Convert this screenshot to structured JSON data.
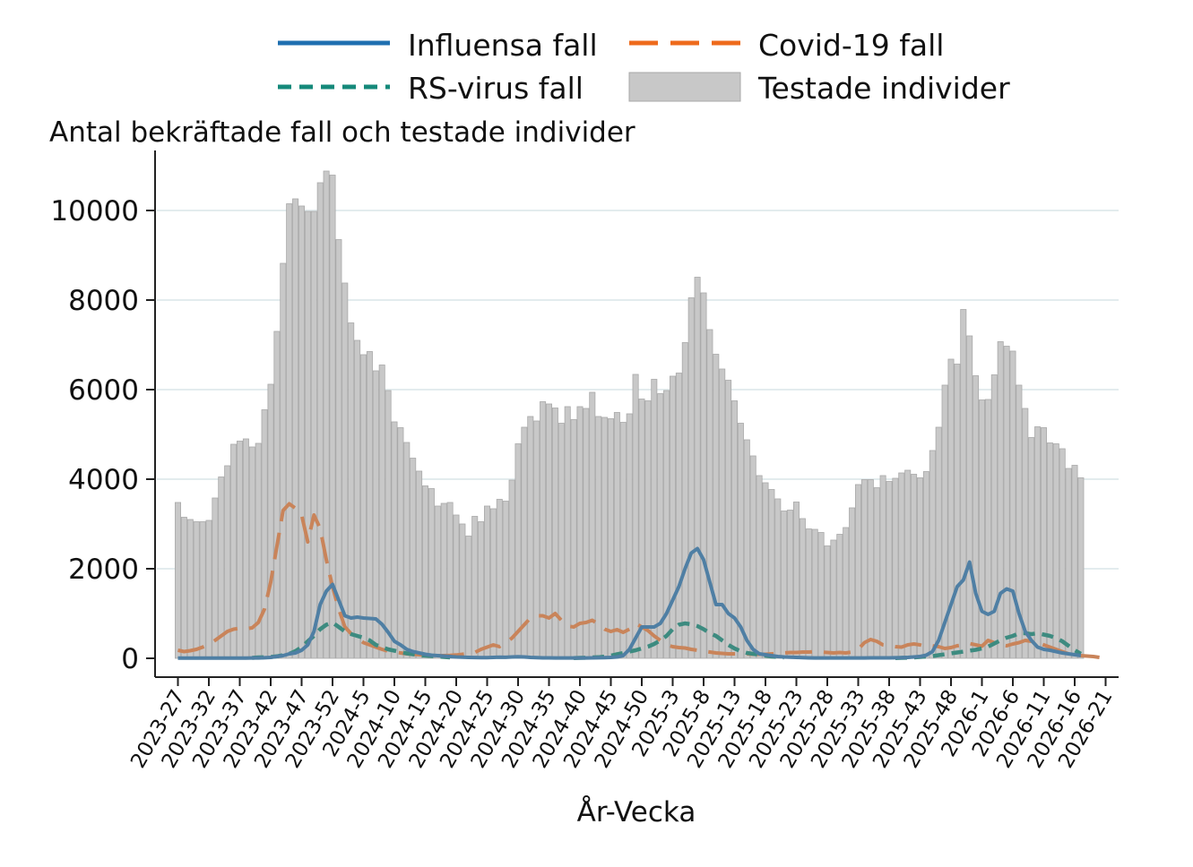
{
  "chart_data": {
    "type": "bar",
    "title": "Antal bekräftade fall och testade individer",
    "xlabel": "År-Vecka",
    "ylabel": "",
    "ylim": [
      0,
      11000
    ],
    "yticks": [
      0,
      2000,
      4000,
      6000,
      8000,
      10000
    ],
    "grid": true,
    "legend_position": "top",
    "tick_labels": [
      "2023-27",
      "2023-32",
      "2023-37",
      "2023-42",
      "2023-47",
      "2023-52",
      "2024-5",
      "2024-10",
      "2024-15",
      "2024-20",
      "2024-25",
      "2024-30",
      "2024-35",
      "2024-40",
      "2024-45",
      "2024-50",
      "2025-3",
      "2025-8",
      "2025-13",
      "2025-18",
      "2025-23",
      "2025-28",
      "2025-33",
      "2025-38",
      "2025-43",
      "2025-48",
      "2026-1",
      "2026-6",
      "2026-11",
      "2026-16",
      "2026-21"
    ],
    "legend": [
      {
        "key": "influensa",
        "label": "Influensa fall",
        "color": "#1f6fb0",
        "style": "solid"
      },
      {
        "key": "covid",
        "label": "Covid-19 fall",
        "color": "#ee6a1c",
        "style": "longdash"
      },
      {
        "key": "rsv",
        "label": "RS-virus fall",
        "color": "#15897a",
        "style": "dash"
      },
      {
        "key": "tested",
        "label": "Testade individer",
        "color": "#c8c8c8",
        "style": "bar"
      }
    ],
    "series": [
      {
        "name": "Testade individer",
        "key": "tested",
        "values": [
          3480,
          3150,
          3100,
          3050,
          3050,
          3080,
          3580,
          4050,
          4300,
          4780,
          4850,
          4900,
          4720,
          4800,
          5550,
          6120,
          7300,
          8820,
          10150,
          10260,
          10100,
          9980,
          9980,
          10620,
          10880,
          10790,
          9350,
          8380,
          7490,
          7100,
          6780,
          6850,
          6420,
          6550,
          5980,
          5280,
          5150,
          4820,
          4470,
          4180,
          3850,
          3790,
          3400,
          3460,
          3480,
          3200,
          3000,
          2730,
          3170,
          3050,
          3400,
          3340,
          3550,
          3510,
          3980,
          4790,
          5160,
          5400,
          5300,
          5730,
          5680,
          5590,
          5250,
          5620,
          5330,
          5620,
          5580,
          5940,
          5400,
          5380,
          5350,
          5490,
          5270,
          5460,
          6340,
          5790,
          5750,
          6230,
          5910,
          5980,
          6300,
          6370,
          7050,
          8050,
          8510,
          8160,
          7340,
          6790,
          6460,
          6210,
          5750,
          5250,
          4880,
          4520,
          4080,
          3920,
          3770,
          3560,
          3290,
          3310,
          3490,
          3120,
          2890,
          2880,
          2810,
          2510,
          2640,
          2770,
          2920,
          3360,
          3880,
          3990,
          3990,
          3810,
          4080,
          3950,
          4020,
          4140,
          4200,
          4110,
          4030,
          4170,
          4640,
          5160,
          6100,
          6680,
          6570,
          7790,
          7200,
          6310,
          5770,
          5780,
          6330,
          7070,
          6970,
          6860,
          6100,
          5580,
          4930,
          5170,
          5150,
          4810,
          4790,
          4680,
          4240,
          4310,
          4030
        ]
      },
      {
        "name": "Influensa fall",
        "key": "influensa",
        "values": [
          5,
          5,
          4,
          4,
          4,
          4,
          4,
          5,
          5,
          5,
          6,
          6,
          7,
          8,
          12,
          20,
          40,
          60,
          100,
          120,
          180,
          300,
          600,
          1200,
          1500,
          1650,
          1300,
          950,
          900,
          920,
          900,
          890,
          880,
          760,
          580,
          380,
          300,
          200,
          150,
          120,
          90,
          70,
          60,
          50,
          40,
          30,
          25,
          20,
          18,
          16,
          15,
          20,
          25,
          22,
          30,
          35,
          30,
          20,
          15,
          10,
          10,
          8,
          8,
          8,
          8,
          8,
          8,
          10,
          12,
          15,
          20,
          30,
          60,
          200,
          450,
          700,
          700,
          700,
          780,
          1000,
          1300,
          1600,
          2000,
          2350,
          2450,
          2200,
          1700,
          1200,
          1200,
          1000,
          900,
          700,
          400,
          200,
          100,
          80,
          60,
          40,
          30,
          25,
          20,
          15,
          10,
          8,
          8,
          8,
          8,
          8,
          8,
          8,
          8,
          8,
          10,
          10,
          10,
          10,
          12,
          15,
          20,
          30,
          40,
          70,
          150,
          400,
          800,
          1200,
          1600,
          1750,
          2150,
          1450,
          1050,
          980,
          1050,
          1450,
          1550,
          1500,
          1000,
          600,
          400,
          250,
          200,
          180,
          150,
          120,
          100,
          80,
          60
        ]
      },
      {
        "name": "Covid-19 fall",
        "key": "covid",
        "values": [
          180,
          150,
          170,
          200,
          250,
          300,
          400,
          500,
          600,
          650,
          670,
          660,
          680,
          800,
          1100,
          1700,
          2500,
          3300,
          3450,
          3350,
          3200,
          2600,
          3200,
          2900,
          2200,
          1600,
          1100,
          700,
          550,
          450,
          350,
          300,
          250,
          200,
          160,
          140,
          120,
          100,
          90,
          80,
          70,
          65,
          60,
          60,
          65,
          75,
          90,
          110,
          130,
          200,
          250,
          300,
          260,
          350,
          450,
          600,
          750,
          900,
          950,
          950,
          900,
          1000,
          850,
          720,
          700,
          780,
          800,
          850,
          760,
          650,
          600,
          640,
          580,
          650,
          780,
          700,
          620,
          500,
          400,
          300,
          260,
          240,
          230,
          200,
          180,
          160,
          140,
          120,
          110,
          100,
          100,
          100,
          100,
          90,
          90,
          90,
          100,
          110,
          120,
          130,
          130,
          140,
          140,
          150,
          140,
          130,
          120,
          130,
          120,
          140,
          200,
          350,
          420,
          380,
          300,
          280,
          260,
          250,
          300,
          320,
          300,
          260,
          280,
          260,
          220,
          240,
          280,
          300,
          330,
          300,
          270,
          400,
          350,
          300,
          280,
          320,
          350,
          400,
          380,
          350,
          300,
          250,
          200,
          150,
          100,
          80,
          60,
          50,
          40,
          20
        ]
      },
      {
        "name": "RS-virus fall",
        "key": "rsv",
        "values": [
          null,
          null,
          null,
          null,
          null,
          null,
          null,
          null,
          null,
          null,
          null,
          null,
          10,
          20,
          25,
          30,
          45,
          70,
          100,
          160,
          250,
          380,
          500,
          650,
          750,
          800,
          700,
          600,
          540,
          500,
          460,
          400,
          300,
          250,
          200,
          170,
          140,
          110,
          90,
          70,
          60,
          50,
          40,
          30,
          20,
          null,
          null,
          null,
          null,
          null,
          null,
          null,
          null,
          null,
          null,
          null,
          null,
          null,
          null,
          null,
          null,
          null,
          null,
          null,
          5,
          10,
          15,
          20,
          25,
          40,
          60,
          90,
          120,
          150,
          180,
          220,
          260,
          320,
          400,
          500,
          650,
          750,
          780,
          760,
          720,
          650,
          560,
          500,
          400,
          300,
          220,
          160,
          120,
          100,
          80,
          60,
          40,
          30,
          20,
          null,
          null,
          null,
          null,
          null,
          null,
          null,
          null,
          null,
          null,
          null,
          null,
          null,
          null,
          null,
          null,
          null,
          5,
          10,
          15,
          20,
          30,
          40,
          50,
          70,
          90,
          110,
          130,
          150,
          170,
          190,
          220,
          260,
          330,
          400,
          460,
          500,
          560,
          560,
          540,
          560,
          530,
          500,
          450,
          380,
          280,
          180,
          100
        ]
      }
    ]
  }
}
